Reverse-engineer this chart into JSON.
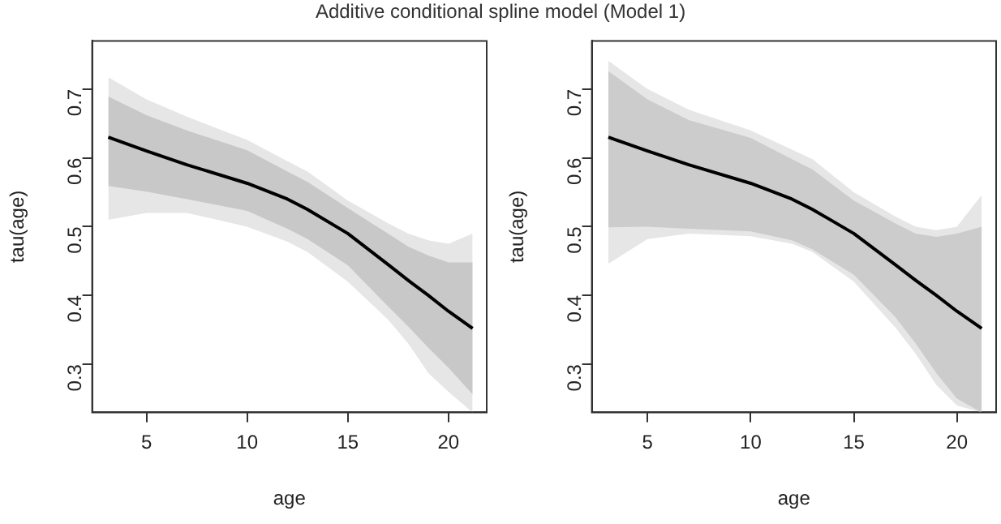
{
  "chart_data": [
    {
      "type": "line",
      "title": "Additive conditional spline model (Model 1)",
      "xlabel": "age",
      "ylabel": "tau(age)",
      "x": [
        3.1,
        5,
        7,
        10,
        12,
        13,
        15,
        17,
        18,
        19,
        20,
        21.2
      ],
      "xlim": [
        2.3,
        21.9
      ],
      "ylim": [
        0.23,
        0.77
      ],
      "xticks": [
        5,
        10,
        15,
        20
      ],
      "yticks": [
        0.3,
        0.4,
        0.5,
        0.6,
        0.7
      ],
      "grid": false,
      "legend": false,
      "series": [
        {
          "type": "area",
          "color": "#e6e6e6",
          "values": [
            null,
            null,
            null,
            null,
            null,
            null,
            null,
            null,
            null,
            null,
            null,
            null
          ],
          "lower": [
            0.51,
            0.52,
            0.52,
            0.5,
            0.478,
            0.463,
            0.42,
            0.365,
            0.33,
            0.287,
            0.26,
            0.23
          ],
          "upper": [
            0.717,
            0.685,
            0.66,
            0.626,
            0.595,
            0.58,
            0.538,
            0.505,
            0.49,
            0.48,
            0.475,
            0.49
          ]
        },
        {
          "type": "area",
          "color": "#c8c8c8",
          "values": [
            null,
            null,
            null,
            null,
            null,
            null,
            null,
            null,
            null,
            null,
            null,
            null
          ],
          "lower": [
            0.559,
            0.551,
            0.54,
            0.523,
            0.497,
            0.482,
            0.444,
            0.384,
            0.355,
            0.324,
            0.295,
            0.256
          ],
          "upper": [
            0.689,
            0.662,
            0.64,
            0.611,
            0.58,
            0.565,
            0.527,
            0.49,
            0.471,
            0.458,
            0.448,
            0.448
          ]
        },
        {
          "type": "line",
          "color": "#000000",
          "values": [
            0.63,
            0.61,
            0.59,
            0.563,
            0.54,
            0.525,
            0.49,
            0.445,
            0.422,
            0.4,
            0.377,
            0.352
          ]
        }
      ]
    },
    {
      "type": "line",
      "xlabel": "age",
      "ylabel": "tau(age)",
      "x": [
        3.1,
        5,
        7,
        10,
        12,
        13,
        15,
        17,
        18,
        19,
        20,
        21.2
      ],
      "xlim": [
        2.3,
        21.9
      ],
      "ylim": [
        0.23,
        0.77
      ],
      "xticks": [
        5,
        10,
        15,
        20
      ],
      "yticks": [
        0.3,
        0.4,
        0.5,
        0.6,
        0.7
      ],
      "grid": false,
      "legend": false,
      "series": [
        {
          "type": "area",
          "color": "#e6e6e6",
          "values": [
            null,
            null,
            null,
            null,
            null,
            null,
            null,
            null,
            null,
            null,
            null,
            null
          ],
          "lower": [
            0.446,
            0.482,
            0.49,
            0.486,
            0.475,
            0.463,
            0.42,
            0.354,
            0.315,
            0.27,
            0.24,
            0.23
          ],
          "upper": [
            0.741,
            0.7,
            0.67,
            0.64,
            0.612,
            0.598,
            0.55,
            0.515,
            0.5,
            0.495,
            0.5,
            0.546
          ]
        },
        {
          "type": "area",
          "color": "#cccccc",
          "values": [
            null,
            null,
            null,
            null,
            null,
            null,
            null,
            null,
            null,
            null,
            null,
            null
          ],
          "lower": [
            0.499,
            0.5,
            0.497,
            0.493,
            0.48,
            0.467,
            0.43,
            0.369,
            0.33,
            0.287,
            0.25,
            0.23
          ],
          "upper": [
            0.726,
            0.685,
            0.655,
            0.629,
            0.598,
            0.583,
            0.538,
            0.505,
            0.49,
            0.485,
            0.49,
            0.5
          ]
        },
        {
          "type": "line",
          "color": "#000000",
          "values": [
            0.63,
            0.61,
            0.59,
            0.563,
            0.54,
            0.525,
            0.49,
            0.445,
            0.422,
            0.4,
            0.377,
            0.352
          ]
        }
      ]
    }
  ]
}
